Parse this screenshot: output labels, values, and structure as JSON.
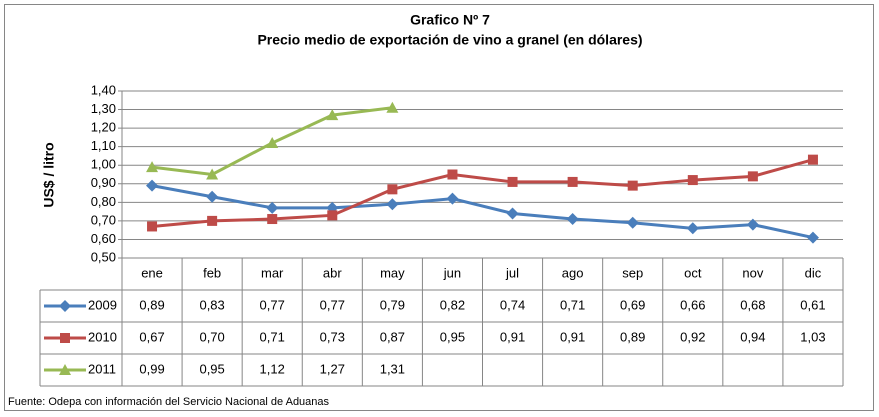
{
  "chart_data": {
    "type": "line",
    "title": "Grafico Nº 7",
    "subtitle": "Precio medio de exportación de vino a granel (en dólares)",
    "y_label": "US$ / litro",
    "source": "Fuente: Odepa con información del Servicio Nacional de Aduanas",
    "categories": [
      "ene",
      "feb",
      "mar",
      "abr",
      "may",
      "jun",
      "jul",
      "ago",
      "sep",
      "oct",
      "nov",
      "dic"
    ],
    "ylim": [
      0.5,
      1.4
    ],
    "yticks": [
      {
        "value": 0.5,
        "label": "0,50"
      },
      {
        "value": 0.6,
        "label": "0,60"
      },
      {
        "value": 0.7,
        "label": "0,70"
      },
      {
        "value": 0.8,
        "label": "0,80"
      },
      {
        "value": 0.9,
        "label": "0,90"
      },
      {
        "value": 1.0,
        "label": "1,00"
      },
      {
        "value": 1.1,
        "label": "1,10"
      },
      {
        "value": 1.2,
        "label": "1,20"
      },
      {
        "value": 1.3,
        "label": "1,30"
      },
      {
        "value": 1.4,
        "label": "1,40"
      }
    ],
    "grid": true,
    "series": [
      {
        "name": "2009",
        "color": "#4a7ebb",
        "marker": "diamond",
        "values": [
          0.89,
          0.83,
          0.77,
          0.77,
          0.79,
          0.82,
          0.74,
          0.71,
          0.69,
          0.66,
          0.68,
          0.61
        ],
        "value_labels": [
          "0,89",
          "0,83",
          "0,77",
          "0,77",
          "0,79",
          "0,82",
          "0,74",
          "0,71",
          "0,69",
          "0,66",
          "0,68",
          "0,61"
        ]
      },
      {
        "name": "2010",
        "color": "#be4b48",
        "marker": "square",
        "values": [
          0.67,
          0.7,
          0.71,
          0.73,
          0.87,
          0.95,
          0.91,
          0.91,
          0.89,
          0.92,
          0.94,
          1.03
        ],
        "value_labels": [
          "0,67",
          "0,70",
          "0,71",
          "0,73",
          "0,87",
          "0,95",
          "0,91",
          "0,91",
          "0,89",
          "0,92",
          "0,94",
          "1,03"
        ]
      },
      {
        "name": "2011",
        "color": "#98b954",
        "marker": "triangle",
        "values": [
          0.99,
          0.95,
          1.12,
          1.27,
          1.31,
          null,
          null,
          null,
          null,
          null,
          null,
          null
        ],
        "value_labels": [
          "0,99",
          "0,95",
          "1,12",
          "1,27",
          "1,31",
          null,
          null,
          null,
          null,
          null,
          null,
          null
        ]
      }
    ]
  }
}
